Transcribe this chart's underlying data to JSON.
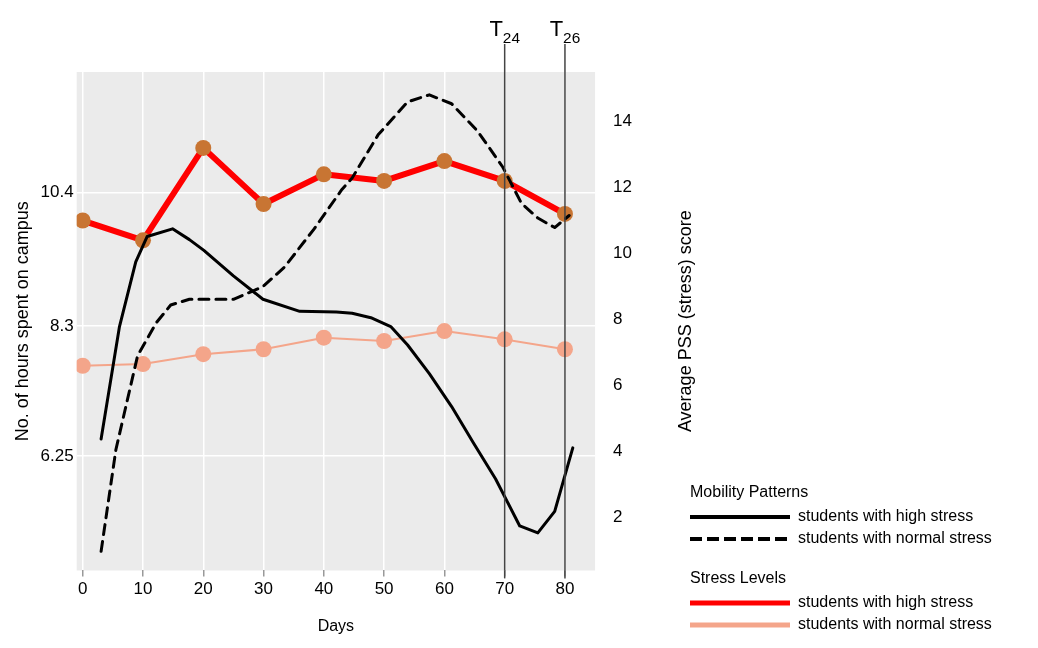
{
  "chart_data": {
    "type": "line",
    "xlabel": "Days",
    "ylabel": "No. of hours spent on campus",
    "y2label": "Average PSS (stress) score",
    "xlim": [
      -1,
      85
    ],
    "xticks": [
      0,
      10,
      20,
      30,
      40,
      50,
      60,
      70,
      80
    ],
    "ylim": [
      4.45,
      12.3
    ],
    "yticks": [
      6.25,
      8.3,
      10.4
    ],
    "y2lim": [
      0.4,
      15.5
    ],
    "y2ticks": [
      2,
      4,
      6,
      8,
      10,
      12,
      14
    ],
    "grid": true,
    "legend": "bottom right",
    "annotations": [
      "Mobility Patterns",
      "Stress Levels"
    ],
    "ref_lines": [
      {
        "axis": "x",
        "value": 70,
        "label": "T$_{24}$",
        "color": "#444444"
      },
      {
        "axis": "x",
        "value": 80,
        "label": "T$_{26}$",
        "color": "#444444"
      }
    ],
    "series": [
      {
        "name": "students with high stress",
        "color": "#000000",
        "axis": "y",
        "marker": "none",
        "line_style": "solid",
        "x": [
          3.05,
          6.1,
          8.8,
          10.7,
          14.9,
          17.7,
          20.1,
          25.0,
          29.9,
          36.0,
          42.1,
          44.7,
          47.8,
          51.1,
          53.9,
          57.5,
          61.2,
          64.8,
          68.5,
          72.5,
          75.5,
          78.3,
          81.3
        ],
        "values": [
          6.52,
          8.29,
          9.31,
          9.71,
          9.83,
          9.66,
          9.49,
          9.09,
          8.72,
          8.53,
          8.52,
          8.5,
          8.43,
          8.29,
          8.0,
          7.55,
          7.03,
          6.46,
          5.89,
          5.15,
          5.04,
          5.38,
          6.38
        ]
      },
      {
        "name": "students with normal stress",
        "color": "#000000",
        "axis": "y",
        "marker": "none",
        "line_style": "dashed",
        "x": [
          3.05,
          5.5,
          9.1,
          12.2,
          14.6,
          17.7,
          25.0,
          29.9,
          33.5,
          38.4,
          43.0,
          44.7,
          49.0,
          53.9,
          57.5,
          61.2,
          65.5,
          69.7,
          72.8,
          75.5,
          78.3,
          80.7
        ],
        "values": [
          4.75,
          6.35,
          7.83,
          8.35,
          8.63,
          8.72,
          8.72,
          8.92,
          9.23,
          9.83,
          10.45,
          10.63,
          11.31,
          11.83,
          11.94,
          11.8,
          11.37,
          10.8,
          10.23,
          10.0,
          9.85,
          10.04
        ]
      },
      {
        "name": "students with high stress",
        "color": "#ff0000",
        "colors": [
          "#c87533",
          "#c87533",
          "#c87533",
          "#c87533",
          "#c87533",
          "#c87533",
          "#c87533",
          "#c87533",
          "#c87533"
        ],
        "axis": "y2",
        "marker": "circle",
        "line_style": "solid",
        "x": [
          0,
          10,
          20,
          30,
          40,
          50,
          60,
          70,
          80
        ],
        "values": [
          11.0,
          10.4,
          13.2,
          11.5,
          12.4,
          12.2,
          12.8,
          12.2,
          11.2
        ]
      },
      {
        "name": "students with normal stress",
        "color": "#f4a58a",
        "axis": "y2",
        "marker": "circle",
        "line_style": "solid",
        "x": [
          0,
          10,
          20,
          30,
          40,
          50,
          60,
          70,
          80
        ],
        "values": [
          6.6,
          6.65,
          6.95,
          7.1,
          7.45,
          7.35,
          7.65,
          7.4,
          7.1
        ]
      }
    ]
  }
}
